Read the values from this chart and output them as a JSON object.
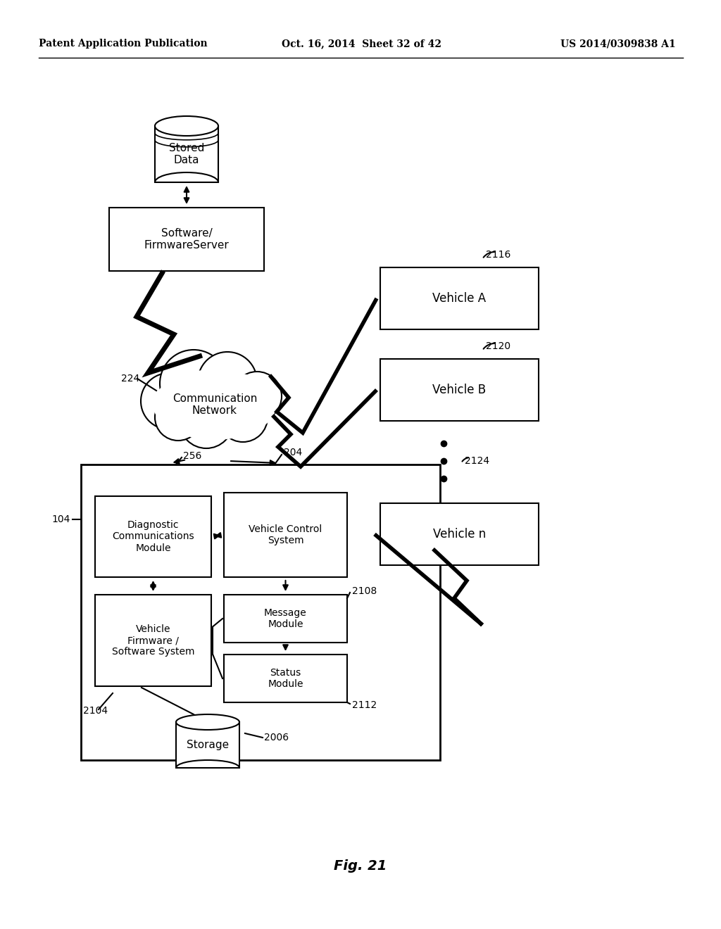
{
  "title": "Fig. 21",
  "header_left": "Patent Application Publication",
  "header_center": "Oct. 16, 2014  Sheet 32 of 42",
  "header_right": "US 2014/0309838 A1",
  "bg_color": "#ffffff",
  "labels": {
    "stored_data": "Stored\nData",
    "firmware_server": "Software/\nFirmwareServer",
    "comm_network": "Communication\nNetwork",
    "vehicle_a": "Vehicle A",
    "vehicle_b": "Vehicle B",
    "vehicle_n": "Vehicle n",
    "diag_comm": "Diagnostic\nCommunications\nModule",
    "vehicle_control": "Vehicle Control\nSystem",
    "vehicle_firmware": "Vehicle\nFirmware /\nSoftware System",
    "message_module": "Message\nModule",
    "status_module": "Status\nModule",
    "storage": "Storage"
  },
  "ref_nums": {
    "n224": "224",
    "n104": "104",
    "n256": "256",
    "n204": "204",
    "n2104": "2104",
    "n2108": "2108",
    "n2112": "2112",
    "n2116": "2116",
    "n2120": "2120",
    "n2124": "2124",
    "n2006": "2006"
  }
}
